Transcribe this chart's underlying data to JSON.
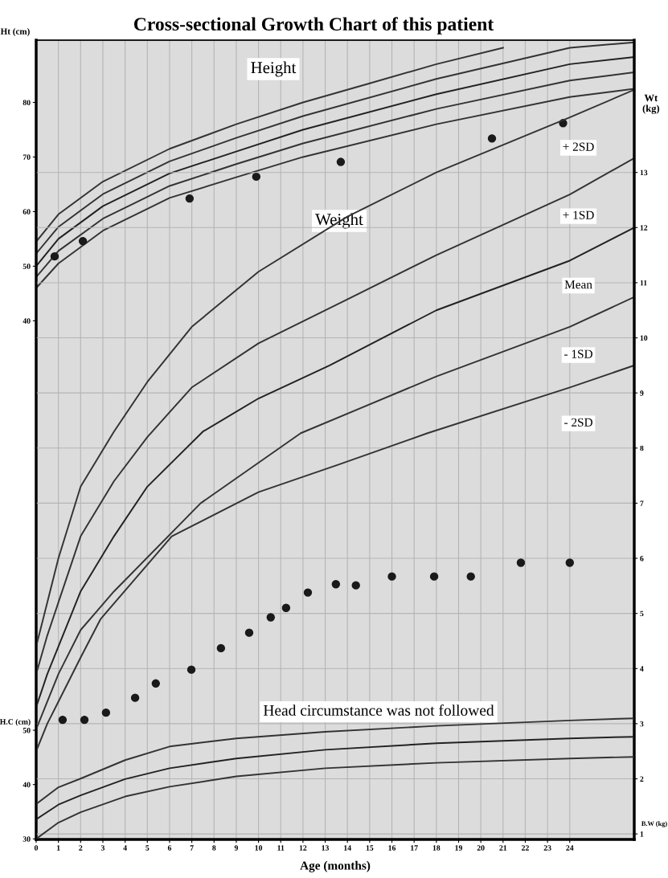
{
  "chart_data": {
    "type": "line",
    "title": "Cross-sectional Growth Chart of this patient",
    "xlabel": "Age (months)",
    "ylabel": "Ht (cm)",
    "y2label": "Wt (kg)",
    "y3label": "H.C (cm)",
    "xlim": [
      0,
      26.9
    ],
    "xticks": [
      0,
      1,
      2,
      3,
      4,
      5,
      6,
      7,
      8,
      9,
      10,
      11,
      12,
      13,
      14,
      15,
      16,
      17,
      18,
      19,
      20,
      21,
      22,
      23,
      24
    ],
    "ylim": [
      -55,
      91.4
    ],
    "yticks": [
      40,
      50,
      60,
      70,
      80
    ],
    "y2lim": [
      0.9,
      15.4
    ],
    "y2ticks": [
      1,
      2,
      3,
      4,
      5,
      6,
      7,
      8,
      9,
      10,
      11,
      12,
      13
    ],
    "y3lim": [
      29.9,
      177
    ],
    "y3ticks": [
      30,
      40,
      50
    ],
    "grid": true,
    "legend": false,
    "marker": "none",
    "annotations": [
      "Height",
      "Weight",
      "Head circumstance was not followed",
      "B.W (kg)"
    ],
    "series": [
      {
        "axis": "y",
        "color": "#333333",
        "x": [
          0,
          1,
          3,
          6,
          9,
          12,
          15,
          18,
          21
        ],
        "values": [
          54.5,
          59.5,
          65.5,
          71.5,
          76,
          80,
          83.5,
          87,
          90
        ]
      },
      {
        "axis": "y",
        "color": "#333333",
        "x": [
          0,
          1,
          3,
          6,
          9,
          12,
          18,
          24,
          26.9
        ],
        "values": [
          52.3,
          57.2,
          63.2,
          69.2,
          73.5,
          77.5,
          84.3,
          90,
          91
        ]
      },
      {
        "axis": "y",
        "color": "#222222",
        "x": [
          0,
          1,
          3,
          6,
          9,
          12,
          18,
          24,
          26.9
        ],
        "values": [
          50,
          55,
          61,
          67,
          71,
          75,
          81.5,
          87,
          88.3
        ]
      },
      {
        "axis": "y",
        "color": "#333333",
        "x": [
          0,
          1,
          3,
          6,
          9,
          12,
          18,
          24,
          26.9
        ],
        "values": [
          48,
          52.8,
          58.7,
          64.7,
          68.7,
          72.5,
          78.8,
          84,
          85.5
        ]
      },
      {
        "axis": "y",
        "color": "#333333",
        "x": [
          0,
          1,
          3,
          6,
          9,
          12,
          18,
          24,
          26.9
        ],
        "values": [
          46,
          50.5,
          56.5,
          62.5,
          66.3,
          70,
          76,
          81,
          82.5
        ]
      },
      {
        "type": "scatter",
        "marker": "circle",
        "axis": "y",
        "color": "#1a1a1a",
        "x": [
          0.83,
          2.1,
          6.9,
          9.9,
          13.7,
          20.5,
          23.7
        ],
        "values": [
          51.8,
          54.6,
          62.4,
          66.4,
          69.1,
          73.4,
          76.2
        ]
      },
      {
        "axis": "y2",
        "name": "+ 2SD",
        "color": "#333333",
        "x": [
          0,
          0.5,
          1,
          2,
          3.5,
          5,
          7,
          10,
          14,
          18,
          24,
          26.9
        ],
        "values": [
          4.4,
          5.2,
          6.0,
          7.3,
          8.3,
          9.2,
          10.2,
          11.2,
          12.2,
          13.0,
          14.0,
          14.5
        ]
      },
      {
        "axis": "y2",
        "name": "+ 1SD",
        "color": "#333333",
        "x": [
          0,
          0.5,
          1,
          2,
          3.5,
          5,
          7,
          10,
          14,
          18,
          24,
          26.9
        ],
        "values": [
          3.9,
          4.6,
          5.2,
          6.4,
          7.4,
          8.2,
          9.1,
          9.9,
          10.7,
          11.5,
          12.6,
          13.26
        ]
      },
      {
        "axis": "y2",
        "name": "Mean",
        "color": "#222222",
        "x": [
          0,
          0.5,
          1,
          2,
          3.5,
          5,
          7.5,
          10,
          13.2,
          18,
          24,
          26.9
        ],
        "values": [
          3.3,
          3.9,
          4.4,
          5.4,
          6.4,
          7.3,
          8.3,
          8.9,
          9.5,
          10.5,
          11.4,
          12.0
        ]
      },
      {
        "axis": "y2",
        "name": "- 1SD",
        "color": "#333333",
        "x": [
          0,
          0.5,
          1,
          2,
          3.5,
          7.4,
          11.9,
          18,
          24,
          26.9
        ],
        "values": [
          2.9,
          3.4,
          3.9,
          4.7,
          5.4,
          7.0,
          8.27,
          9.3,
          10.2,
          10.74
        ]
      },
      {
        "axis": "y2",
        "name": "- 2SD",
        "color": "#333333",
        "x": [
          0,
          0.5,
          1,
          2,
          2.9,
          6.1,
          10,
          13.6,
          17.6,
          24,
          26.9
        ],
        "values": [
          2.5,
          3.0,
          3.4,
          4.2,
          4.9,
          6.4,
          7.2,
          7.7,
          8.27,
          9.1,
          9.5
        ]
      },
      {
        "type": "scatter",
        "marker": "circle",
        "axis": "y2",
        "color": "#1a1a1a",
        "x": [
          1.19,
          2.17,
          3.14,
          4.45,
          5.38,
          6.98,
          8.31,
          9.58,
          10.55,
          11.24,
          12.22,
          13.48,
          14.38,
          16.0,
          17.9,
          19.55,
          21.8,
          24.0
        ],
        "values": [
          3.07,
          3.07,
          3.2,
          3.47,
          3.73,
          3.98,
          4.37,
          4.65,
          4.93,
          5.1,
          5.38,
          5.53,
          5.51,
          5.67,
          5.67,
          5.67,
          5.92,
          5.92
        ]
      },
      {
        "axis": "y3",
        "color": "#333333",
        "x": [
          0,
          1,
          2,
          4,
          6,
          9,
          13,
          18,
          24,
          26.9
        ],
        "values": [
          36.4,
          39.5,
          41.1,
          44.5,
          47.0,
          48.5,
          49.7,
          50.8,
          51.8,
          52.2
        ]
      },
      {
        "axis": "y3",
        "color": "#222222",
        "x": [
          0,
          1,
          2,
          4,
          6,
          9,
          13,
          18,
          24,
          26.9
        ],
        "values": [
          33.6,
          36.3,
          38,
          41,
          43,
          44.8,
          46.4,
          47.6,
          48.5,
          48.8
        ]
      },
      {
        "axis": "y3",
        "color": "#333333",
        "x": [
          0,
          1,
          2,
          4,
          6,
          9,
          13,
          18,
          24,
          26.9
        ],
        "values": [
          30.0,
          33,
          34.9,
          37.8,
          39.6,
          41.5,
          43,
          44,
          44.8,
          45.1
        ]
      }
    ]
  }
}
